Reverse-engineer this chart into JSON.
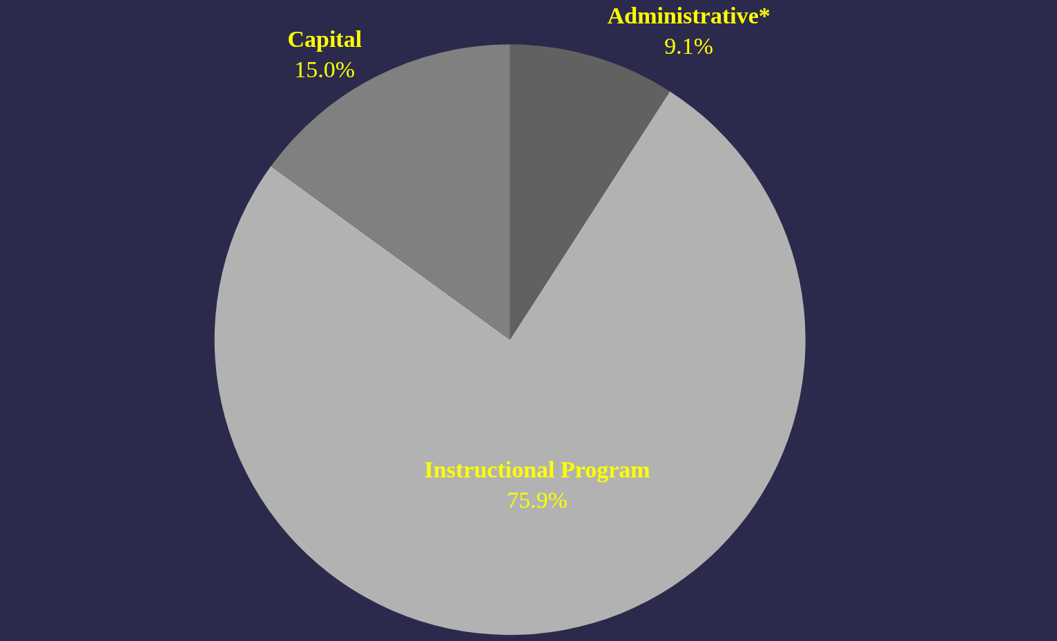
{
  "chart_data": {
    "type": "pie",
    "categories": [
      "Administrative*",
      "Instructional Program",
      "Capital"
    ],
    "values": [
      9.1,
      75.9,
      15.0
    ],
    "value_labels": [
      "9.1%",
      "75.9%",
      "15.0%"
    ],
    "colors": [
      "#616161",
      "#b2b2b2",
      "#808080"
    ],
    "legend": false
  }
}
